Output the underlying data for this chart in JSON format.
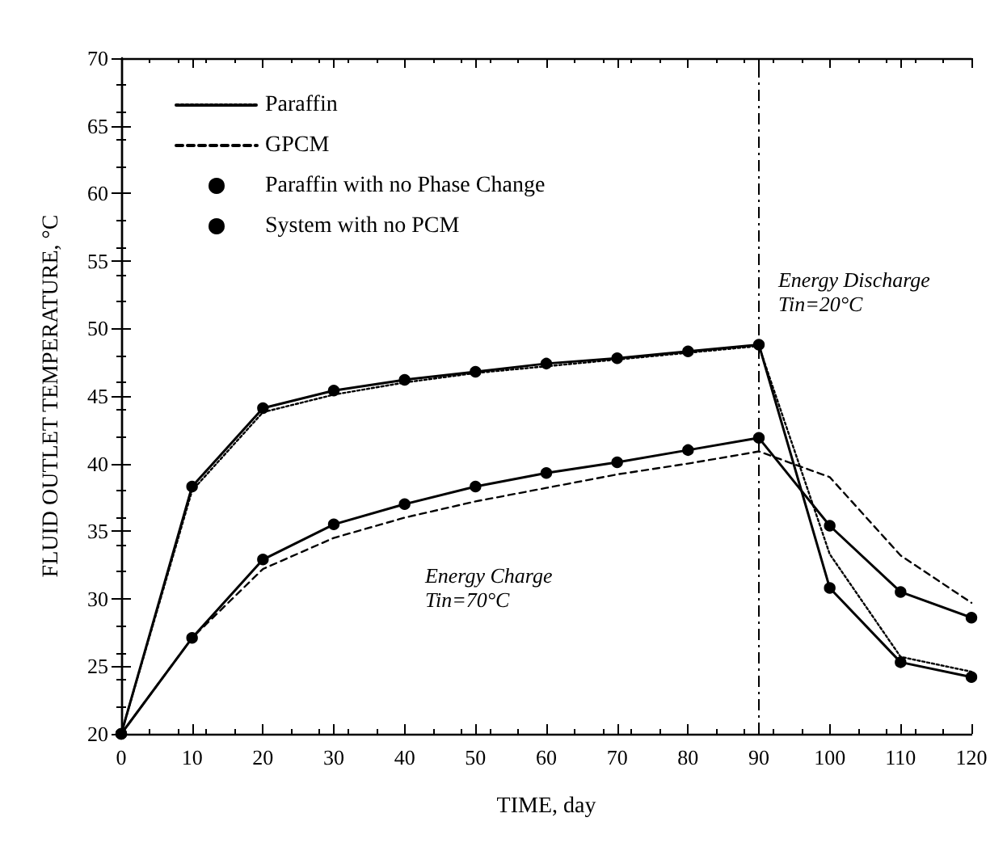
{
  "chart_data": {
    "type": "line",
    "xlabel": "TIME, day",
    "ylabel": "FLUID OUTLET TEMPERATURE, °C",
    "x": [
      0,
      10,
      20,
      30,
      40,
      50,
      60,
      70,
      80,
      90,
      100,
      110,
      120
    ],
    "series": [
      {
        "name": "Paraffin",
        "color": "#000000",
        "line_style": "dotted",
        "marker": "none",
        "values": [
          20,
          38.0,
          43.8,
          45.1,
          46.0,
          46.7,
          47.2,
          47.7,
          48.2,
          48.7,
          33.3,
          25.7,
          24.6
        ]
      },
      {
        "name": "GPCM",
        "color": "#000000",
        "line_style": "dashed",
        "marker": "none",
        "values": [
          20,
          27.1,
          32.2,
          34.5,
          36.0,
          37.2,
          38.2,
          39.2,
          40.0,
          40.9,
          39.0,
          33.2,
          29.7
        ]
      },
      {
        "name": "Paraffin with no Phase Change",
        "color": "#000000",
        "line_style": "solid",
        "marker": "circle",
        "values": [
          20,
          38.3,
          44.1,
          45.4,
          46.2,
          46.8,
          47.4,
          47.8,
          48.3,
          48.8,
          30.8,
          25.3,
          24.2
        ]
      },
      {
        "name": "System with no PCM",
        "color": "#000000",
        "line_style": "solid",
        "marker": "circle",
        "values": [
          20,
          27.1,
          32.9,
          35.5,
          37.0,
          38.3,
          39.3,
          40.1,
          41.0,
          41.9,
          35.4,
          30.5,
          28.6
        ]
      }
    ],
    "xlim": [
      0,
      120
    ],
    "xticks": [
      0,
      10,
      20,
      30,
      40,
      50,
      60,
      70,
      80,
      90,
      100,
      110,
      120
    ],
    "ylim": [
      20,
      70
    ],
    "yticks": [
      20,
      25,
      30,
      35,
      40,
      45,
      50,
      55,
      60,
      65,
      70
    ],
    "grid": false,
    "legend": "top left",
    "ref_lines": [
      {
        "axis": "x",
        "value": 90,
        "line_style": "dashdot"
      }
    ],
    "annotations": [
      "Energy Charge\nTin=70°C",
      "Energy Discharge\nTin=20°C"
    ]
  }
}
